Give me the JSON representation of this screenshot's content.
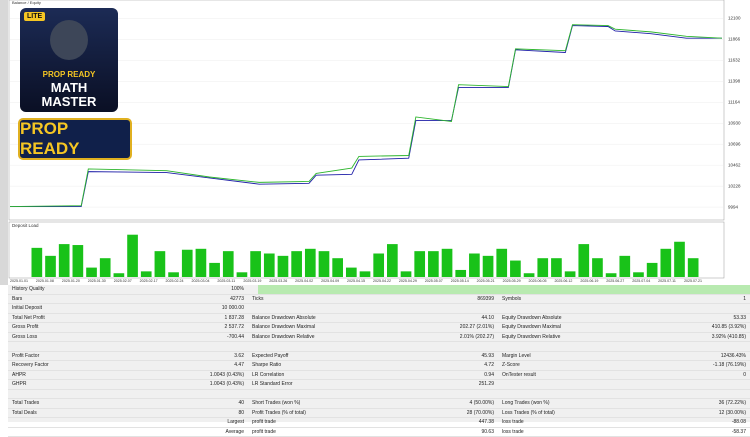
{
  "chart_data": [
    {
      "type": "line",
      "title": "Balance / Equity",
      "x": [
        0,
        10,
        11,
        22,
        28,
        35,
        42,
        43,
        48,
        49,
        56,
        57,
        62,
        63,
        70,
        71,
        78,
        79,
        84,
        85,
        90,
        95,
        100
      ],
      "xlim": [
        0,
        100
      ],
      "series": [
        {
          "name": "Balance",
          "color": "#1f1fa8",
          "values": [
            10000,
            10000,
            10390,
            10380,
            10320,
            10250,
            10260,
            10350,
            10360,
            10520,
            10540,
            10960,
            10960,
            11330,
            11330,
            11750,
            11720,
            12020,
            12010,
            11960,
            11930,
            11880,
            11880
          ]
        },
        {
          "name": "Equity",
          "color": "#2db52d",
          "values": [
            10000,
            10010,
            10420,
            10400,
            10330,
            10270,
            10280,
            10370,
            10430,
            10560,
            10570,
            11000,
            10950,
            11360,
            11340,
            11760,
            11740,
            12030,
            12020,
            11980,
            11950,
            11900,
            11880
          ]
        }
      ],
      "ylim": [
        9850,
        12250
      ],
      "yticks": [
        9994,
        10228,
        10462,
        10696,
        10930,
        11164,
        11398,
        11632,
        11866,
        12100
      ],
      "grid": true
    },
    {
      "type": "bar",
      "title": "Deposit Load",
      "color": "#19c219",
      "values": [
        62,
        45,
        70,
        68,
        20,
        40,
        8,
        90,
        12,
        55,
        10,
        58,
        60,
        30,
        55,
        10,
        55,
        50,
        45,
        55,
        60,
        55,
        40,
        20,
        12,
        50,
        70,
        12,
        55,
        55,
        60,
        15,
        50,
        45,
        60,
        35,
        8,
        40,
        40,
        12,
        70,
        40,
        8,
        45,
        10,
        30,
        60,
        75,
        40
      ],
      "ylim": [
        0,
        100
      ],
      "x_labels": [
        "2025.01.01",
        "2025.01.08",
        "2025.01.20",
        "2025.01.30",
        "2025.02.07",
        "2025.02.17",
        "2025.02.24",
        "2025.03.04",
        "2025.03.11",
        "2025.03.19",
        "2025.03.26",
        "2025.04.02",
        "2025.04.09",
        "2025.04.15",
        "2025.04.22",
        "2025.04.29",
        "2025.05.07",
        "2025.05.14",
        "2025.05.21",
        "2025.05.29",
        "2025.06.05",
        "2025.06.12",
        "2025.06.19",
        "2025.06.27",
        "2025.07.04",
        "2025.07.11",
        "2025.07.21"
      ]
    }
  ],
  "logo": {
    "badge": "LITE",
    "line1": "PROP READY",
    "line2": "MATH",
    "line3": "MASTER",
    "banner": "PROP READY"
  },
  "report": {
    "rows": [
      [
        {
          "label": "History Quality",
          "value": "100%"
        }
      ],
      [
        {
          "label": "Bars",
          "value": "42773"
        },
        {
          "label": "Ticks",
          "value": "869399"
        },
        {
          "label": "Symbols",
          "value": "1"
        }
      ],
      [
        {
          "label": "Initial Deposit",
          "value": "10 000.00"
        }
      ],
      [
        {
          "label": "Total Net Profit",
          "value": "1 837.28"
        },
        {
          "label": "Balance Drawdown Absolute",
          "value": "44.10"
        },
        {
          "label": "Equity Drawdown Absolute",
          "value": "53.33"
        }
      ],
      [
        {
          "label": "Gross Profit",
          "value": "2 537.72"
        },
        {
          "label": "Balance Drawdown Maximal",
          "value": "202.27 (2.01%)"
        },
        {
          "label": "Equity Drawdown Maximal",
          "value": "410.85 (3.92%)"
        }
      ],
      [
        {
          "label": "Gross Loss",
          "value": "-700.44"
        },
        {
          "label": "Balance Drawdown Relative",
          "value": "2.01% (202.27)"
        },
        {
          "label": "Equity Drawdown Relative",
          "value": "3.92% (410.85)"
        }
      ],
      [],
      [
        {
          "label": "Profit Factor",
          "value": "3.62"
        },
        {
          "label": "Expected Payoff",
          "value": "45.93"
        },
        {
          "label": "Margin Level",
          "value": "12436.43%"
        }
      ],
      [
        {
          "label": "Recovery Factor",
          "value": "4.47"
        },
        {
          "label": "Sharpe Ratio",
          "value": "4.72"
        },
        {
          "label": "Z-Score",
          "value": "-1.18 (76.19%)"
        }
      ],
      [
        {
          "label": "AHPR",
          "value": "1.0043 (0.43%)"
        },
        {
          "label": "LR Correlation",
          "value": "0.94"
        },
        {
          "label": "OnTester result",
          "value": "0"
        }
      ],
      [
        {
          "label": "GHPR",
          "value": "1.0043 (0.43%)"
        },
        {
          "label": "LR Standard Error",
          "value": "251.29"
        }
      ],
      [],
      [
        {
          "label": "Total Trades",
          "value": "40"
        },
        {
          "label": "Short Trades (won %)",
          "value": "4 (50.00%)"
        },
        {
          "label": "Long Trades (won %)",
          "value": "36 (72.22%)"
        }
      ],
      [
        {
          "label": "Total Deals",
          "value": "80"
        },
        {
          "label": "Profit Trades (% of total)",
          "value": "28 (70.00%)"
        },
        {
          "label": "Loss Trades (% of total)",
          "value": "12 (30.00%)"
        }
      ],
      [
        {
          "value": "Largest"
        },
        {
          "label": "profit trade",
          "value": "447.38"
        },
        {
          "label": "loss trade",
          "value": "-88.08"
        }
      ],
      [
        {
          "value": "Average"
        },
        {
          "label": "profit trade",
          "value": "90.63"
        },
        {
          "label": "loss trade",
          "value": "-58.37"
        }
      ]
    ]
  }
}
